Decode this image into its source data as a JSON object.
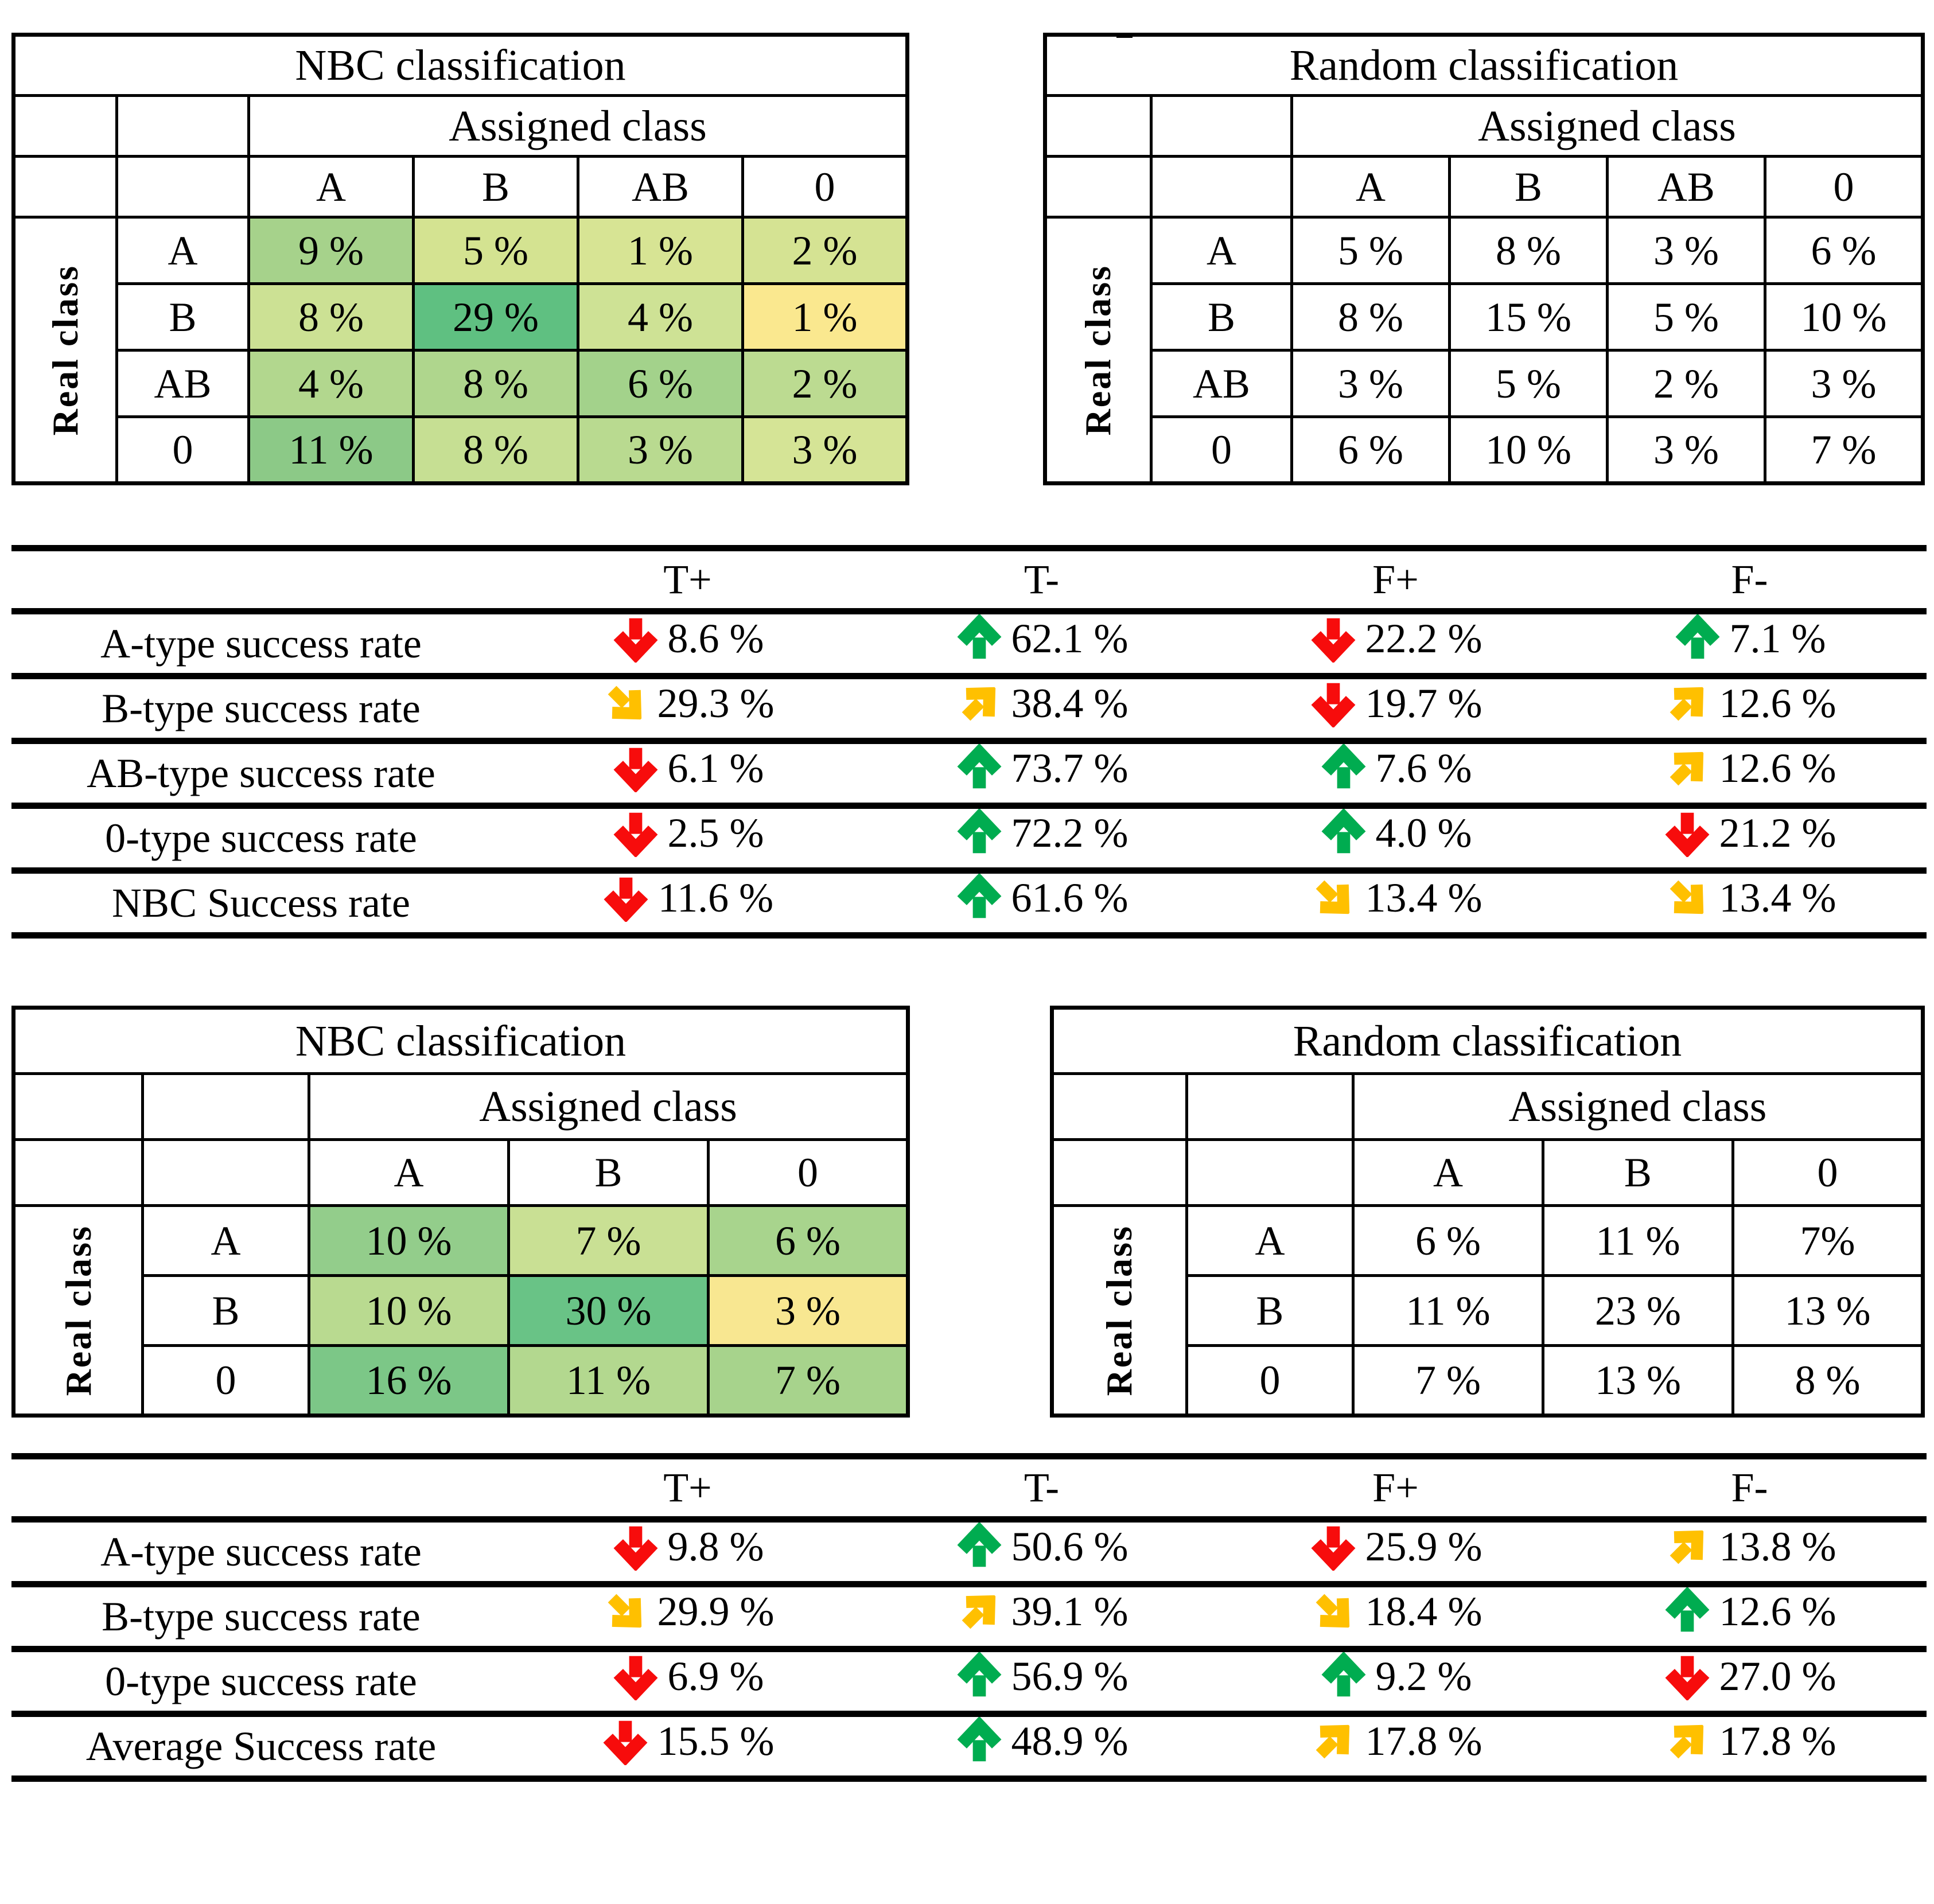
{
  "palette": {
    "arrow_red": "#F70C0C",
    "arrow_green": "#00AC50",
    "arrow_amber": "#FFC000",
    "grid": "#000000",
    "heat_low": "#FAE88F",
    "heat_high": "#5FC081"
  },
  "matrices": {
    "nbc4": {
      "title": "NBC classification",
      "assigned_label": "Assigned class",
      "real_label": "Real class",
      "columns": [
        "A",
        "B",
        "AB",
        "0"
      ],
      "rows": [
        {
          "label": "A",
          "cells": [
            {
              "value": "9 %",
              "bg": "#A6D28B"
            },
            {
              "value": "5 %",
              "bg": "#D4E391"
            },
            {
              "value": "1 %",
              "bg": "#D7E494"
            },
            {
              "value": "2 %",
              "bg": "#D5E393"
            }
          ]
        },
        {
          "label": "B",
          "cells": [
            {
              "value": "8 %",
              "bg": "#CCE194"
            },
            {
              "value": "29 %",
              "bg": "#5FC081"
            },
            {
              "value": "4 %",
              "bg": "#CEE295"
            },
            {
              "value": "1 %",
              "bg": "#FAE88F"
            }
          ]
        },
        {
          "label": "AB",
          "cells": [
            {
              "value": "4 %",
              "bg": "#B2D78E"
            },
            {
              "value": "8 %",
              "bg": "#AFD68D"
            },
            {
              "value": "6 %",
              "bg": "#A3D28B"
            },
            {
              "value": "2 %",
              "bg": "#BCDB91"
            }
          ]
        },
        {
          "label": "0",
          "cells": [
            {
              "value": "11 %",
              "bg": "#8CC987"
            },
            {
              "value": "8 %",
              "bg": "#C6DF93"
            },
            {
              "value": "3 %",
              "bg": "#B9DA90"
            },
            {
              "value": "3 %",
              "bg": "#D5E496"
            }
          ]
        }
      ]
    },
    "rand4": {
      "title": "Random classification",
      "assigned_label": "Assigned class",
      "real_label": "Real class",
      "columns": [
        "A",
        "B",
        "AB",
        "0"
      ],
      "rows": [
        {
          "label": "A",
          "cells": [
            {
              "value": "5 %",
              "bg": "#FFFFFF"
            },
            {
              "value": "8 %",
              "bg": "#FFFFFF"
            },
            {
              "value": "3 %",
              "bg": "#FFFFFF"
            },
            {
              "value": "6 %",
              "bg": "#FFFFFF"
            }
          ]
        },
        {
          "label": "B",
          "cells": [
            {
              "value": "8 %",
              "bg": "#FFFFFF"
            },
            {
              "value": "15 %",
              "bg": "#FFFFFF"
            },
            {
              "value": "5 %",
              "bg": "#FFFFFF"
            },
            {
              "value": "10 %",
              "bg": "#FFFFFF"
            }
          ]
        },
        {
          "label": "AB",
          "cells": [
            {
              "value": "3 %",
              "bg": "#FFFFFF"
            },
            {
              "value": "5 %",
              "bg": "#FFFFFF"
            },
            {
              "value": "2 %",
              "bg": "#FFFFFF"
            },
            {
              "value": "3 %",
              "bg": "#FFFFFF"
            }
          ]
        },
        {
          "label": "0",
          "cells": [
            {
              "value": "6 %",
              "bg": "#FFFFFF"
            },
            {
              "value": "10 %",
              "bg": "#FFFFFF"
            },
            {
              "value": "3 %",
              "bg": "#FFFFFF"
            },
            {
              "value": "7 %",
              "bg": "#FFFFFF"
            }
          ]
        }
      ]
    },
    "nbc3": {
      "title": "NBC classification",
      "assigned_label": "Assigned class",
      "real_label": "Real class",
      "columns": [
        "A",
        "B",
        "0"
      ],
      "rows": [
        {
          "label": "A",
          "cells": [
            {
              "value": "10 %",
              "bg": "#93CD8B"
            },
            {
              "value": "7 %",
              "bg": "#C9E094"
            },
            {
              "value": "6 %",
              "bg": "#A8D48D"
            }
          ]
        },
        {
          "label": "B",
          "cells": [
            {
              "value": "10 %",
              "bg": "#B9DA90"
            },
            {
              "value": "30 %",
              "bg": "#69C386"
            },
            {
              "value": "3 %",
              "bg": "#F8E791"
            }
          ]
        },
        {
          "label": "0",
          "cells": [
            {
              "value": "16 %",
              "bg": "#7CC787"
            },
            {
              "value": "11 %",
              "bg": "#B3D88F"
            },
            {
              "value": "7 %",
              "bg": "#A7D38C"
            }
          ]
        }
      ]
    },
    "rand3": {
      "title": "Random classification",
      "assigned_label": "Assigned class",
      "real_label": "Real class",
      "columns": [
        "A",
        "B",
        "0"
      ],
      "rows": [
        {
          "label": "A",
          "cells": [
            {
              "value": "6 %",
              "bg": "#FFFFFF"
            },
            {
              "value": "11 %",
              "bg": "#FFFFFF"
            },
            {
              "value": "7%",
              "bg": "#FFFFFF"
            }
          ]
        },
        {
          "label": "B",
          "cells": [
            {
              "value": "11 %",
              "bg": "#FFFFFF"
            },
            {
              "value": "23 %",
              "bg": "#FFFFFF"
            },
            {
              "value": "13 %",
              "bg": "#FFFFFF"
            }
          ]
        },
        {
          "label": "0",
          "cells": [
            {
              "value": "7 %",
              "bg": "#FFFFFF"
            },
            {
              "value": "13 %",
              "bg": "#FFFFFF"
            },
            {
              "value": "8 %",
              "bg": "#FFFFFF"
            }
          ]
        }
      ]
    }
  },
  "rates_top": {
    "columns": [
      "T+",
      "T-",
      "F+",
      "F-"
    ],
    "rows": [
      {
        "label": "A-type success rate",
        "cells": [
          {
            "arrow": "down red",
            "value": "8.6 %"
          },
          {
            "arrow": "up green",
            "value": "62.1 %"
          },
          {
            "arrow": "down red",
            "value": "22.2 %"
          },
          {
            "arrow": "up green",
            "value": "7.1 %"
          }
        ]
      },
      {
        "label": "B-type success rate",
        "cells": [
          {
            "arrow": "se amber",
            "value": "29.3 %"
          },
          {
            "arrow": "ne amber",
            "value": "38.4 %"
          },
          {
            "arrow": "down red",
            "value": "19.7 %"
          },
          {
            "arrow": "ne amber",
            "value": "12.6 %"
          }
        ]
      },
      {
        "label": "AB-type success rate",
        "cells": [
          {
            "arrow": "down red",
            "value": "6.1 %"
          },
          {
            "arrow": "up green",
            "value": "73.7 %"
          },
          {
            "arrow": "up green",
            "value": "7.6 %"
          },
          {
            "arrow": "ne amber",
            "value": "12.6 %"
          }
        ]
      },
      {
        "label": "0-type success rate",
        "cells": [
          {
            "arrow": "down red",
            "value": "2.5 %"
          },
          {
            "arrow": "up green",
            "value": "72.2 %"
          },
          {
            "arrow": "up green",
            "value": "4.0 %"
          },
          {
            "arrow": "down red",
            "value": "21.2 %"
          }
        ]
      },
      {
        "label": "NBC Success rate",
        "cells": [
          {
            "arrow": "down red",
            "value": "11.6 %"
          },
          {
            "arrow": "up green",
            "value": "61.6 %"
          },
          {
            "arrow": "se amber",
            "value": "13.4 %"
          },
          {
            "arrow": "se amber",
            "value": "13.4 %"
          }
        ]
      }
    ]
  },
  "rates_bottom": {
    "columns": [
      "T+",
      "T-",
      "F+",
      "F-"
    ],
    "rows": [
      {
        "label": "A-type success rate",
        "cells": [
          {
            "arrow": "down red",
            "value": "9.8 %"
          },
          {
            "arrow": "up green",
            "value": "50.6 %"
          },
          {
            "arrow": "down red",
            "value": "25.9 %"
          },
          {
            "arrow": "ne amber",
            "value": "13.8 %"
          }
        ]
      },
      {
        "label": "B-type success rate",
        "cells": [
          {
            "arrow": "se amber",
            "value": "29.9 %"
          },
          {
            "arrow": "ne amber",
            "value": "39.1 %"
          },
          {
            "arrow": "se amber",
            "value": "18.4 %"
          },
          {
            "arrow": "up green",
            "value": "12.6 %"
          }
        ]
      },
      {
        "label": "0-type success rate",
        "cells": [
          {
            "arrow": "down red",
            "value": "6.9 %"
          },
          {
            "arrow": "up green",
            "value": "56.9 %"
          },
          {
            "arrow": "up green",
            "value": "9.2 %"
          },
          {
            "arrow": "down red",
            "value": "27.0 %"
          }
        ]
      },
      {
        "label": "Average Success rate",
        "cells": [
          {
            "arrow": "down red",
            "value": "15.5 %"
          },
          {
            "arrow": "up green",
            "value": "48.9 %"
          },
          {
            "arrow": "ne amber",
            "value": "17.8 %"
          },
          {
            "arrow": "ne amber",
            "value": "17.8 %"
          }
        ]
      }
    ]
  }
}
